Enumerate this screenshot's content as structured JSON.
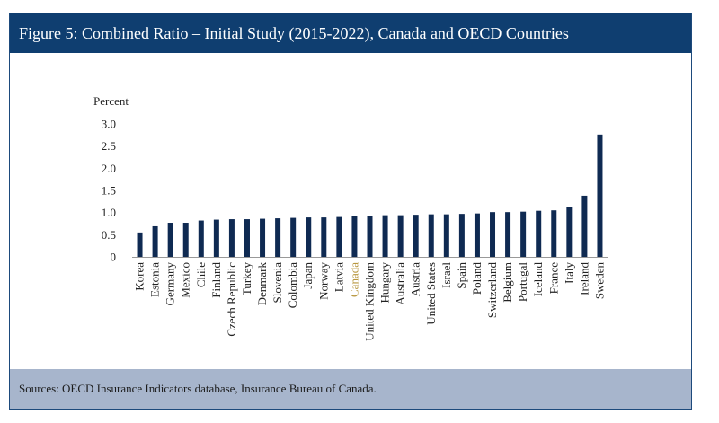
{
  "title": "Figure 5: Combined Ratio – Initial Study (2015-2022), Canada and OECD Countries",
  "source": "Sources: OECD Insurance Indicators database, Insurance Bureau of Canada.",
  "colors": {
    "bar": "#0f2a52",
    "highlight_label": "#b8973f",
    "title_bg": "#0f3e70",
    "footer_bg": "#a7b5cc"
  },
  "chart_data": {
    "type": "bar",
    "ylabel": "Percent",
    "ylim": [
      0,
      3.0
    ],
    "yticks": [
      "0",
      "0.5",
      "1.0",
      "1.5",
      "2.0",
      "2.5",
      "3.0"
    ],
    "categories": [
      "Korea",
      "Estonia",
      "Germany",
      "Mexico",
      "Chile",
      "Finland",
      "Czech Republic",
      "Turkey",
      "Denmark",
      "Slovenia",
      "Colombia",
      "Japan",
      "Norway",
      "Latvia",
      "Canada",
      "United Kingdom",
      "Hungary",
      "Australia",
      "Austria",
      "United States",
      "Israel",
      "Spain",
      "Poland",
      "Switzerland",
      "Belgium",
      "Portugal",
      "Iceland",
      "France",
      "Italy",
      "Ireland",
      "Sweden"
    ],
    "values": [
      0.55,
      0.69,
      0.77,
      0.77,
      0.82,
      0.84,
      0.85,
      0.85,
      0.86,
      0.87,
      0.88,
      0.89,
      0.89,
      0.9,
      0.92,
      0.93,
      0.94,
      0.94,
      0.95,
      0.96,
      0.96,
      0.97,
      0.98,
      1.01,
      1.01,
      1.02,
      1.04,
      1.05,
      1.13,
      1.38,
      2.76
    ],
    "highlight": "Canada",
    "grid": false,
    "legend": "none"
  }
}
